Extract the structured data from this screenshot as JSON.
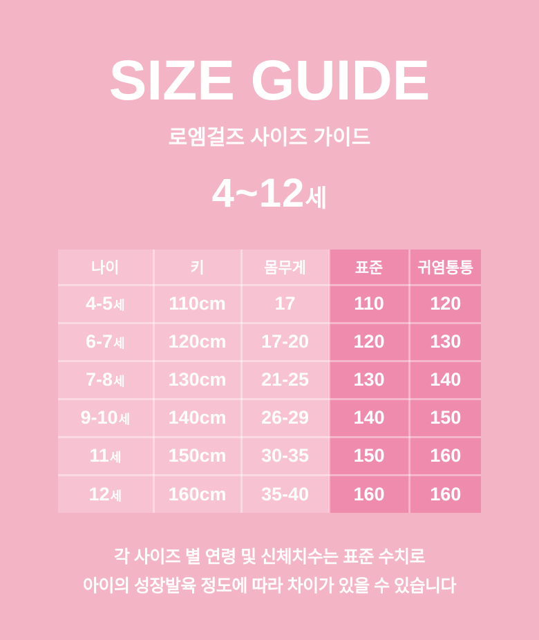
{
  "colors": {
    "background": "#F3B5C6",
    "light_cell": "#F7C2D2",
    "dark_cell": "#EF8CAD",
    "text": "#FFFFFF"
  },
  "header": {
    "title": "SIZE GUIDE",
    "subtitle": "로엠걸즈 사이즈 가이드",
    "age_range_main": "4~12",
    "age_range_suffix": "세"
  },
  "table": {
    "age_suffix": "세",
    "columns": [
      {
        "key": "age",
        "label": "나이",
        "variant": "light"
      },
      {
        "key": "height",
        "label": "키",
        "variant": "light"
      },
      {
        "key": "weight",
        "label": "몸무게",
        "variant": "light"
      },
      {
        "key": "standard",
        "label": "표준",
        "variant": "dark"
      },
      {
        "key": "chubby",
        "label": "귀염통통",
        "variant": "dark"
      }
    ],
    "rows": [
      {
        "age": "4-5",
        "height": "110cm",
        "weight": "17",
        "standard": "110",
        "chubby": "120"
      },
      {
        "age": "6-7",
        "height": "120cm",
        "weight": "17-20",
        "standard": "120",
        "chubby": "130"
      },
      {
        "age": "7-8",
        "height": "130cm",
        "weight": "21-25",
        "standard": "130",
        "chubby": "140"
      },
      {
        "age": "9-10",
        "height": "140cm",
        "weight": "26-29",
        "standard": "140",
        "chubby": "150"
      },
      {
        "age": "11",
        "height": "150cm",
        "weight": "30-35",
        "standard": "150",
        "chubby": "160"
      },
      {
        "age": "12",
        "height": "160cm",
        "weight": "35-40",
        "standard": "160",
        "chubby": "160"
      }
    ]
  },
  "footer": {
    "line1": "각 사이즈 별 연령 및 신체치수는 표준 수치로",
    "line2": "아이의 성장발육 정도에 따라 차이가 있을 수 있습니다"
  }
}
